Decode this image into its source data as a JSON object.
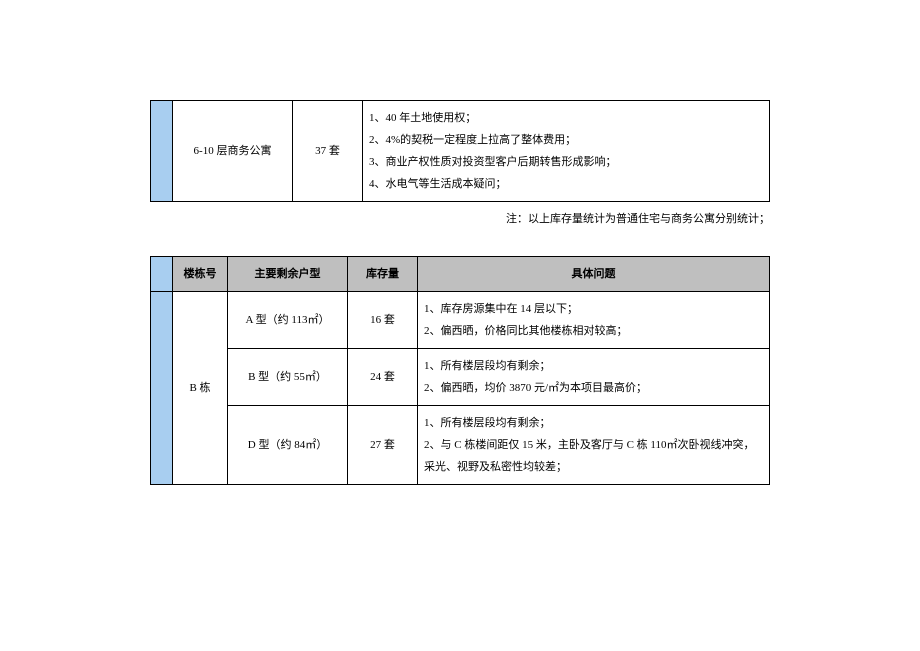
{
  "table1": {
    "row": {
      "type": "6-10 层商务公寓",
      "stock": "37 套",
      "details": [
        "1、40 年土地使用权；",
        "2、4%的契税一定程度上拉高了整体费用；",
        "3、商业产权性质对投资型客户后期转售形成影响；",
        "4、水电气等生活成本疑问；"
      ]
    }
  },
  "note": "注：以上库存量统计为普通住宅与商务公寓分别统计；",
  "table2": {
    "headers": {
      "building": "楼栋号",
      "type": "主要剩余户型",
      "stock": "库存量",
      "detail": "具体问题"
    },
    "building": "B 栋",
    "rows": [
      {
        "type": "A 型（约 113㎡）",
        "stock": "16 套",
        "details": [
          "1、库存房源集中在 14 层以下；",
          "2、偏西晒，价格同比其他楼栋相对较高；"
        ]
      },
      {
        "type": "B 型（约 55㎡）",
        "stock": "24 套",
        "details": [
          "1、所有楼层段均有剩余；",
          "2、偏西晒，均价 3870 元/㎡为本项目最高价；"
        ]
      },
      {
        "type": "D 型（约 84㎡）",
        "stock": "27 套",
        "details": [
          "1、所有楼层段均有剩余；",
          "2、与 C 栋楼间距仅 15 米，主卧及客厅与 C 栋 110㎡次卧视线冲突，采光、视野及私密性均较差；"
        ]
      }
    ]
  },
  "colors": {
    "blue_header": "#a8cef0",
    "grey_header": "#bfbfbf",
    "border": "#000000",
    "background": "#ffffff",
    "text": "#000000"
  }
}
